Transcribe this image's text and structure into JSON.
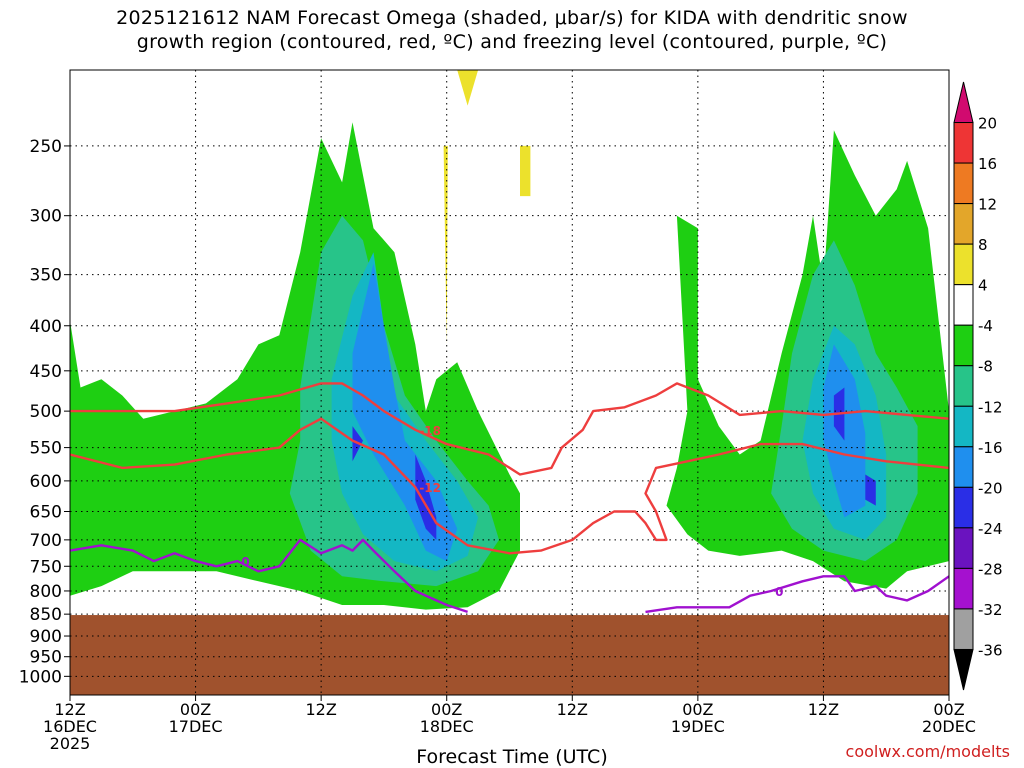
{
  "title_lines": [
    "2025121612 NAM Forecast Omega (shaded, μbar/s) for KIDA with dendritic snow",
    "growth region (contoured, red, ºC) and freezing level (contoured, purple, ºC)"
  ],
  "credit": "coolwx.com/modelts",
  "chart_data": {
    "type": "contour",
    "xlabel": "Forecast Time (UTC)",
    "ylabel": "",
    "y_scale": "pressure (log), inverted",
    "y_ticks": [
      250,
      300,
      350,
      400,
      450,
      500,
      550,
      600,
      650,
      700,
      750,
      800,
      850,
      900,
      950,
      1000
    ],
    "x_ticks": [
      {
        "hour": 0,
        "line1": "12Z",
        "line2": "16DEC",
        "line3": "2025"
      },
      {
        "hour": 12,
        "line1": "00Z",
        "line2": "17DEC",
        "line3": ""
      },
      {
        "hour": 24,
        "line1": "12Z",
        "line2": "",
        "line3": ""
      },
      {
        "hour": 36,
        "line1": "00Z",
        "line2": "18DEC",
        "line3": ""
      },
      {
        "hour": 48,
        "line1": "12Z",
        "line2": "",
        "line3": ""
      },
      {
        "hour": 60,
        "line1": "00Z",
        "line2": "19DEC",
        "line3": ""
      },
      {
        "hour": 72,
        "line1": "12Z",
        "line2": "",
        "line3": ""
      },
      {
        "hour": 84,
        "line1": "00Z",
        "line2": "20DEC",
        "line3": ""
      }
    ],
    "x_range_hours": [
      0,
      84
    ],
    "y_range_hpa": [
      205,
      1050
    ],
    "grid": true,
    "colorbar": {
      "labels": [
        "20",
        "16",
        "12",
        "8",
        "4",
        "-4",
        "-8",
        "-12",
        "-16",
        "-20",
        "-24",
        "-28",
        "-32",
        "-36"
      ],
      "colors": [
        "#d10a6f",
        "#ee3535",
        "#ee7a22",
        "#e3a62a",
        "#ece12c",
        "#ffffff",
        "#1ecf12",
        "#27c489",
        "#14b7c4",
        "#1f8fee",
        "#2a2ee6",
        "#6a13bf",
        "#a511cf",
        "#a0a0a0",
        "#000000"
      ]
    },
    "ground_color": "#a0522d",
    "omega_regions": [
      {
        "level": -4,
        "color": "#1ecf12",
        "poly": [
          [
            0,
            395
          ],
          [
            1,
            470
          ],
          [
            3,
            460
          ],
          [
            5,
            480
          ],
          [
            7,
            510
          ],
          [
            10,
            500
          ],
          [
            13,
            490
          ],
          [
            16,
            460
          ],
          [
            18,
            420
          ],
          [
            20,
            410
          ],
          [
            22,
            330
          ],
          [
            24,
            245
          ],
          [
            26,
            275
          ],
          [
            27,
            235
          ],
          [
            29,
            310
          ],
          [
            31,
            330
          ],
          [
            33,
            420
          ],
          [
            34,
            500
          ],
          [
            35,
            460
          ],
          [
            37,
            440
          ],
          [
            39,
            500
          ],
          [
            42,
            590
          ],
          [
            43,
            620
          ],
          [
            43,
            720
          ],
          [
            41,
            800
          ],
          [
            38,
            835
          ],
          [
            34,
            840
          ],
          [
            30,
            830
          ],
          [
            26,
            830
          ],
          [
            22,
            800
          ],
          [
            18,
            780
          ],
          [
            14,
            760
          ],
          [
            10,
            760
          ],
          [
            6,
            760
          ],
          [
            3,
            790
          ],
          [
            0,
            810
          ]
        ]
      },
      {
        "level": -4,
        "color": "#1ecf12",
        "poly": [
          [
            58,
            300
          ],
          [
            60,
            310
          ],
          [
            60,
            460
          ],
          [
            62,
            520
          ],
          [
            64,
            560
          ],
          [
            66,
            540
          ],
          [
            68,
            430
          ],
          [
            70,
            350
          ],
          [
            71,
            300
          ],
          [
            72,
            360
          ],
          [
            73,
            240
          ],
          [
            75,
            270
          ],
          [
            77,
            300
          ],
          [
            79,
            280
          ],
          [
            80,
            260
          ],
          [
            82,
            310
          ],
          [
            84,
            500
          ],
          [
            84,
            740
          ],
          [
            80,
            760
          ],
          [
            78,
            795
          ],
          [
            74,
            780
          ],
          [
            71,
            740
          ],
          [
            68,
            720
          ],
          [
            64,
            730
          ],
          [
            61,
            720
          ],
          [
            59,
            690
          ],
          [
            57,
            640
          ],
          [
            58,
            580
          ],
          [
            59,
            500
          ]
        ]
      },
      {
        "level": -8,
        "color": "#27c489",
        "poly": [
          [
            22,
            470
          ],
          [
            24,
            330
          ],
          [
            26,
            300
          ],
          [
            28,
            320
          ],
          [
            30,
            400
          ],
          [
            32,
            480
          ],
          [
            35,
            540
          ],
          [
            38,
            600
          ],
          [
            40,
            640
          ],
          [
            41,
            700
          ],
          [
            39,
            760
          ],
          [
            35,
            790
          ],
          [
            30,
            780
          ],
          [
            26,
            770
          ],
          [
            23,
            720
          ],
          [
            21,
            620
          ],
          [
            22,
            540
          ]
        ]
      },
      {
        "level": -8,
        "color": "#27c489",
        "poly": [
          [
            69,
            430
          ],
          [
            71,
            350
          ],
          [
            73,
            320
          ],
          [
            75,
            360
          ],
          [
            77,
            430
          ],
          [
            79,
            470
          ],
          [
            81,
            520
          ],
          [
            81,
            620
          ],
          [
            79,
            700
          ],
          [
            76,
            740
          ],
          [
            72,
            720
          ],
          [
            69,
            680
          ],
          [
            67,
            620
          ],
          [
            68,
            520
          ]
        ]
      },
      {
        "level": -12,
        "color": "#14b7c4",
        "poly": [
          [
            25,
            460
          ],
          [
            27,
            370
          ],
          [
            29,
            330
          ],
          [
            30,
            400
          ],
          [
            31,
            480
          ],
          [
            34,
            540
          ],
          [
            37,
            600
          ],
          [
            39,
            660
          ],
          [
            38,
            730
          ],
          [
            35,
            760
          ],
          [
            31,
            740
          ],
          [
            28,
            690
          ],
          [
            26,
            620
          ],
          [
            25,
            540
          ]
        ]
      },
      {
        "level": -12,
        "color": "#14b7c4",
        "poly": [
          [
            71,
            460
          ],
          [
            73,
            400
          ],
          [
            75,
            420
          ],
          [
            77,
            480
          ],
          [
            78,
            560
          ],
          [
            78,
            660
          ],
          [
            76,
            700
          ],
          [
            73,
            680
          ],
          [
            71,
            620
          ],
          [
            70,
            540
          ]
        ]
      },
      {
        "level": -16,
        "color": "#1f8fee",
        "poly": [
          [
            27,
            430
          ],
          [
            29,
            340
          ],
          [
            30,
            400
          ],
          [
            31,
            470
          ],
          [
            32,
            540
          ],
          [
            35,
            600
          ],
          [
            37,
            680
          ],
          [
            36,
            740
          ],
          [
            34,
            720
          ],
          [
            32,
            640
          ],
          [
            29,
            560
          ],
          [
            27,
            500
          ]
        ]
      },
      {
        "level": -16,
        "color": "#1f8fee",
        "poly": [
          [
            72,
            470
          ],
          [
            73,
            420
          ],
          [
            75,
            460
          ],
          [
            76,
            530
          ],
          [
            76,
            640
          ],
          [
            74,
            660
          ],
          [
            73,
            600
          ],
          [
            72,
            540
          ]
        ]
      },
      {
        "level": -20,
        "color": "#2a2ee6",
        "poly": [
          [
            33,
            560
          ],
          [
            34,
            600
          ],
          [
            35,
            660
          ],
          [
            35,
            700
          ],
          [
            34,
            680
          ],
          [
            33,
            630
          ]
        ]
      },
      {
        "level": -20,
        "color": "#2a2ee6",
        "poly": [
          [
            27,
            520
          ],
          [
            28,
            540
          ],
          [
            27,
            570
          ],
          [
            27,
            540
          ]
        ]
      },
      {
        "level": -20,
        "color": "#2a2ee6",
        "poly": [
          [
            73,
            480
          ],
          [
            74,
            470
          ],
          [
            74,
            540
          ],
          [
            73,
            520
          ]
        ]
      },
      {
        "level": -20,
        "color": "#2a2ee6",
        "poly": [
          [
            76,
            590
          ],
          [
            77,
            600
          ],
          [
            77,
            640
          ],
          [
            76,
            630
          ]
        ]
      },
      {
        "level": 4,
        "color": "#ece12c",
        "poly": [
          [
            37,
            205
          ],
          [
            39,
            205
          ],
          [
            38,
            225
          ]
        ]
      },
      {
        "level": 4,
        "color": "#ece12c",
        "poly": [
          [
            43,
            250
          ],
          [
            44,
            250
          ],
          [
            44,
            285
          ],
          [
            43,
            285
          ]
        ]
      },
      {
        "level": 4,
        "color": "#ece12c",
        "poly": [
          [
            35.7,
            250
          ],
          [
            36.1,
            250
          ],
          [
            36,
            420
          ]
        ]
      }
    ],
    "series": [
      {
        "name": "-18",
        "color": "#ee3e3e",
        "points": [
          [
            0,
            500
          ],
          [
            5,
            500
          ],
          [
            10,
            500
          ],
          [
            15,
            490
          ],
          [
            20,
            480
          ],
          [
            24,
            465
          ],
          [
            26,
            465
          ],
          [
            28,
            480
          ],
          [
            30,
            500
          ],
          [
            33,
            525
          ],
          [
            36,
            545
          ],
          [
            40,
            560
          ],
          [
            43,
            590
          ],
          [
            46,
            580
          ],
          [
            47,
            550
          ],
          [
            49,
            525
          ],
          [
            50,
            500
          ],
          [
            53,
            495
          ],
          [
            56,
            480
          ],
          [
            58,
            465
          ],
          [
            61,
            480
          ],
          [
            64,
            505
          ],
          [
            68,
            500
          ],
          [
            72,
            505
          ],
          [
            76,
            500
          ],
          [
            80,
            505
          ],
          [
            84,
            510
          ]
        ]
      },
      {
        "name": "-12",
        "color": "#ee3e3e",
        "points": [
          [
            0,
            560
          ],
          [
            5,
            580
          ],
          [
            10,
            575
          ],
          [
            15,
            560
          ],
          [
            20,
            550
          ],
          [
            22,
            525
          ],
          [
            24,
            510
          ],
          [
            27,
            540
          ],
          [
            30,
            560
          ],
          [
            33,
            610
          ],
          [
            35,
            670
          ],
          [
            38,
            710
          ],
          [
            42,
            725
          ],
          [
            45,
            720
          ],
          [
            48,
            700
          ],
          [
            50,
            670
          ],
          [
            52,
            650
          ],
          [
            54,
            650
          ],
          [
            55,
            670
          ],
          [
            56,
            700
          ],
          [
            57,
            700
          ],
          [
            56,
            650
          ],
          [
            55,
            620
          ],
          [
            56,
            580
          ],
          [
            59,
            570
          ],
          [
            62,
            560
          ],
          [
            66,
            545
          ],
          [
            70,
            545
          ],
          [
            74,
            560
          ],
          [
            78,
            570
          ],
          [
            84,
            580
          ]
        ]
      },
      {
        "name": "0",
        "color": "#a011cf",
        "points": [
          [
            0,
            720
          ],
          [
            3,
            710
          ],
          [
            6,
            720
          ],
          [
            8,
            740
          ],
          [
            10,
            725
          ],
          [
            12,
            740
          ],
          [
            14,
            750
          ],
          [
            16,
            740
          ],
          [
            18,
            760
          ],
          [
            20,
            750
          ],
          [
            22,
            700
          ],
          [
            24,
            725
          ],
          [
            26,
            710
          ],
          [
            27,
            720
          ],
          [
            28,
            700
          ],
          [
            29,
            720
          ],
          [
            31,
            760
          ],
          [
            33,
            800
          ],
          [
            36,
            830
          ],
          [
            38,
            845
          ]
        ]
      },
      {
        "name": "0",
        "color": "#a011cf",
        "points": [
          [
            55,
            845
          ],
          [
            58,
            835
          ],
          [
            63,
            835
          ],
          [
            65,
            810
          ],
          [
            67,
            800
          ],
          [
            70,
            780
          ],
          [
            72,
            770
          ],
          [
            74,
            770
          ],
          [
            75,
            800
          ],
          [
            77,
            790
          ],
          [
            78,
            810
          ],
          [
            80,
            820
          ],
          [
            82,
            800
          ],
          [
            84,
            770
          ]
        ]
      }
    ]
  }
}
